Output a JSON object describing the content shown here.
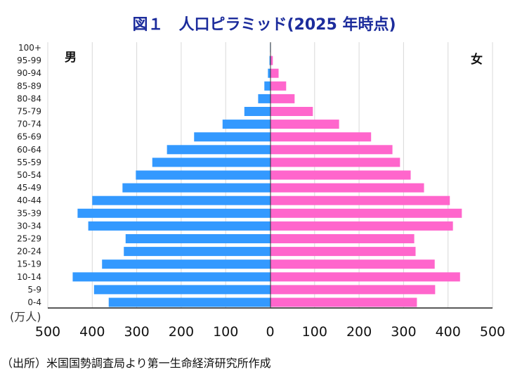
{
  "chart_data": {
    "type": "bar",
    "title": "図１　人口ピラミッド(2025 年時点)",
    "unit_label": "(万人)",
    "male_label": "男",
    "female_label": "女",
    "source": "（出所）米国国勢調査局より第一生命経済研究所作成",
    "categories": [
      "100+",
      "95-99",
      "90-94",
      "85-89",
      "80-84",
      "75-79",
      "70-74",
      "65-69",
      "60-64",
      "55-59",
      "50-54",
      "45-49",
      "40-44",
      "35-39",
      "30-34",
      "25-29",
      "20-24",
      "15-19",
      "10-14",
      "5-9",
      "0-4"
    ],
    "series": [
      {
        "name": "男",
        "color": "#3399ff",
        "values": [
          0.3,
          1.5,
          5,
          13,
          27,
          58,
          107,
          171,
          232,
          265,
          302,
          332,
          400,
          433,
          409,
          325,
          329,
          378,
          444,
          396,
          363
        ]
      },
      {
        "name": "女",
        "color": "#ff66cc",
        "values": [
          1,
          6,
          19,
          36,
          55,
          96,
          155,
          227,
          275,
          292,
          316,
          346,
          404,
          431,
          411,
          324,
          327,
          370,
          427,
          371,
          330
        ]
      }
    ],
    "xlim": [
      -500,
      500
    ],
    "xticks": [
      -500,
      -400,
      -300,
      -200,
      -100,
      0,
      100,
      200,
      300,
      400,
      500
    ],
    "xtick_labels": [
      "500",
      "400",
      "300",
      "200",
      "100",
      "0",
      "100",
      "200",
      "300",
      "400",
      "500"
    ],
    "grid": true
  }
}
